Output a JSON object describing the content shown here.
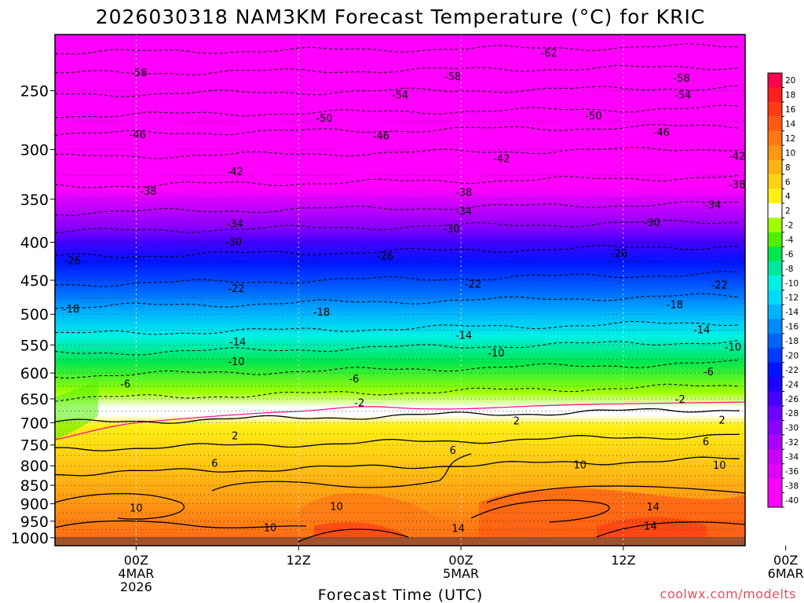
{
  "chart_data": {
    "type": "heatmap",
    "title": "2026030318 NAM3KM Forecast Temperature (°C) for KRIC",
    "xlabel": "Forecast Time (UTC)",
    "ylabel": "",
    "credit": "coolwx.com/modelts",
    "x_range_hours": [
      -6,
      45
    ],
    "pressure_range_hpa": [
      210,
      1025
    ],
    "y_ticks": [
      250,
      300,
      350,
      400,
      450,
      500,
      550,
      600,
      650,
      700,
      750,
      800,
      850,
      900,
      950,
      1000
    ],
    "x_ticks": [
      {
        "hour": 0,
        "lines": [
          "00Z",
          "4MAR",
          "2026"
        ]
      },
      {
        "hour": 12,
        "lines": [
          "12Z"
        ]
      },
      {
        "hour": 24,
        "lines": [
          "00Z",
          "5MAR"
        ]
      },
      {
        "hour": 36,
        "lines": [
          "12Z"
        ]
      },
      {
        "hour": 48,
        "lines": [
          "00Z",
          "6MAR"
        ]
      }
    ],
    "colorbar": {
      "labels": [
        "20",
        "18",
        "16",
        "14",
        "12",
        "10",
        "8",
        "6",
        "4",
        "2",
        "-2",
        "-4",
        "-6",
        "-8",
        "-10",
        "-12",
        "-14",
        "-16",
        "-18",
        "-20",
        "-22",
        "-24",
        "-26",
        "-28",
        "-30",
        "-32",
        "-34",
        "-36",
        "-38",
        "-40"
      ],
      "colors": [
        "#ff0050",
        "#ff1e1e",
        "#ff3c14",
        "#ff5a14",
        "#ff7814",
        "#ff9614",
        "#ffb414",
        "#ffd214",
        "#fff014",
        "#ffffff",
        "#a0ff00",
        "#50f000",
        "#00e650",
        "#00e6a0",
        "#00f0e6",
        "#00dcff",
        "#00b4ff",
        "#008cff",
        "#0064ff",
        "#003cff",
        "#0014ff",
        "#1e00ff",
        "#4600ff",
        "#6e00ff",
        "#8c00ff",
        "#aa00ff",
        "#c800ff",
        "#e100ff",
        "#ff00ff",
        "#ff00ff"
      ]
    },
    "contour_labels": [
      {
        "text": "-62",
        "hour": 30.5,
        "p": 222
      },
      {
        "text": "-58",
        "hour": 0.2,
        "p": 236
      },
      {
        "text": "-58",
        "hour": 23.4,
        "p": 239
      },
      {
        "text": "-58",
        "hour": 40.3,
        "p": 240
      },
      {
        "text": "-54",
        "hour": 19.5,
        "p": 253
      },
      {
        "text": "-54",
        "hour": 40.4,
        "p": 253
      },
      {
        "text": "-50",
        "hour": 13.9,
        "p": 272
      },
      {
        "text": "-50",
        "hour": 33.8,
        "p": 270
      },
      {
        "text": "-46",
        "hour": 0.1,
        "p": 286
      },
      {
        "text": "-46",
        "hour": 18.1,
        "p": 287
      },
      {
        "text": "-46",
        "hour": 38.8,
        "p": 284
      },
      {
        "text": "-42",
        "hour": 7.3,
        "p": 321
      },
      {
        "text": "-42",
        "hour": 27.0,
        "p": 308
      },
      {
        "text": "-42",
        "hour": 44.4,
        "p": 306
      },
      {
        "text": "-38",
        "hour": 0.9,
        "p": 341
      },
      {
        "text": "-38",
        "hour": 24.2,
        "p": 342
      },
      {
        "text": "-38",
        "hour": 44.4,
        "p": 334
      },
      {
        "text": "-34",
        "hour": 7.3,
        "p": 377
      },
      {
        "text": "-34",
        "hour": 24.2,
        "p": 363
      },
      {
        "text": "-34",
        "hour": 42.6,
        "p": 356
      },
      {
        "text": "-30",
        "hour": 7.2,
        "p": 399
      },
      {
        "text": "-30",
        "hour": 23.3,
        "p": 383
      },
      {
        "text": "-30",
        "hour": 38.1,
        "p": 376
      },
      {
        "text": "-26",
        "hour": -4.7,
        "p": 423
      },
      {
        "text": "-26",
        "hour": 18.4,
        "p": 417
      },
      {
        "text": "-26",
        "hour": 35.7,
        "p": 414
      },
      {
        "text": "-22",
        "hour": 7.4,
        "p": 461
      },
      {
        "text": "-22",
        "hour": 24.9,
        "p": 455
      },
      {
        "text": "-22",
        "hour": 43.1,
        "p": 456
      },
      {
        "text": "-18",
        "hour": -4.8,
        "p": 491
      },
      {
        "text": "-18",
        "hour": 13.7,
        "p": 496
      },
      {
        "text": "-18",
        "hour": 39.8,
        "p": 485
      },
      {
        "text": "-14",
        "hour": 7.5,
        "p": 544
      },
      {
        "text": "-14",
        "hour": 24.2,
        "p": 533
      },
      {
        "text": "-14",
        "hour": 41.8,
        "p": 524
      },
      {
        "text": "-10",
        "hour": 7.4,
        "p": 578
      },
      {
        "text": "-10",
        "hour": 26.6,
        "p": 563
      },
      {
        "text": "-10",
        "hour": 44.1,
        "p": 553
      },
      {
        "text": "-6",
        "hour": -0.8,
        "p": 620
      },
      {
        "text": "-6",
        "hour": 16.1,
        "p": 610
      },
      {
        "text": "-6",
        "hour": 42.3,
        "p": 597
      },
      {
        "text": "-2",
        "hour": 16.5,
        "p": 657
      },
      {
        "text": "-2",
        "hour": 40.2,
        "p": 650
      },
      {
        "text": "2",
        "hour": 7.3,
        "p": 728
      },
      {
        "text": "2",
        "hour": 28.1,
        "p": 695
      },
      {
        "text": "2",
        "hour": 43.3,
        "p": 693
      },
      {
        "text": "6",
        "hour": 5.8,
        "p": 793
      },
      {
        "text": "6",
        "hour": 23.4,
        "p": 762
      },
      {
        "text": "6",
        "hour": 42.1,
        "p": 741
      },
      {
        "text": "10",
        "hour": 0.0,
        "p": 911
      },
      {
        "text": "10",
        "hour": 14.8,
        "p": 906
      },
      {
        "text": "10",
        "hour": 9.9,
        "p": 968
      },
      {
        "text": "10",
        "hour": 32.8,
        "p": 797
      },
      {
        "text": "10",
        "hour": 43.1,
        "p": 798
      },
      {
        "text": "14",
        "hour": 23.8,
        "p": 970
      },
      {
        "text": "14",
        "hour": 38.2,
        "p": 908
      },
      {
        "text": "14",
        "hour": 38.0,
        "p": 963
      }
    ]
  }
}
